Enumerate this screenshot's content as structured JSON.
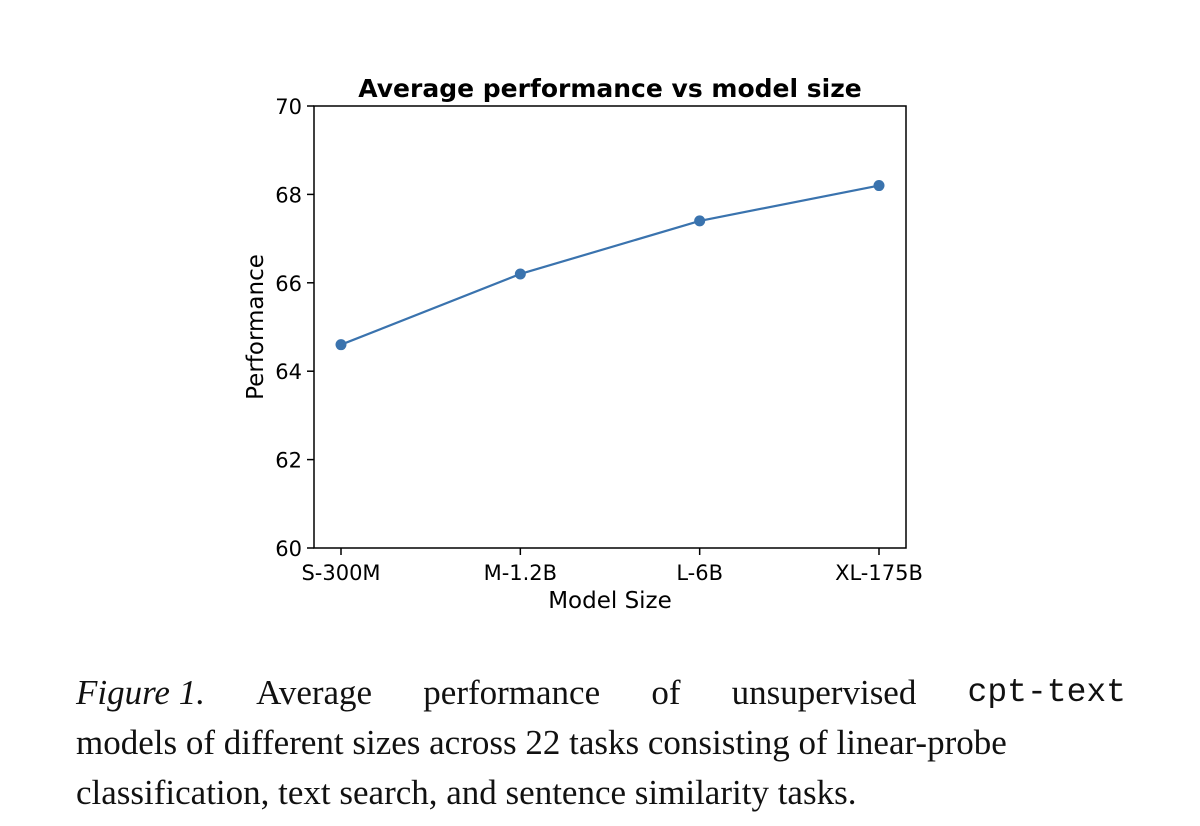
{
  "chart_data": {
    "type": "line",
    "title": "Average performance vs model size",
    "xlabel": "Model Size",
    "ylabel": "Performance",
    "categories": [
      "S-300M",
      "M-1.2B",
      "L-6B",
      "XL-175B"
    ],
    "series": [
      {
        "values": [
          64.6,
          66.2,
          67.4,
          68.2
        ]
      }
    ],
    "ylim": [
      60,
      70
    ],
    "yticks": [
      "60",
      "62",
      "64",
      "66",
      "68",
      "70"
    ],
    "grid": false,
    "color": "#3a73ae"
  },
  "caption": {
    "figure_label": "Figure 1.",
    "words": [
      "Average",
      "performance",
      "of",
      "unsupervised"
    ],
    "code": "cpt-text",
    "line2": "models of different sizes across 22 tasks consisting of linear-probe",
    "line3": "classification, text search, and sentence similarity tasks."
  }
}
